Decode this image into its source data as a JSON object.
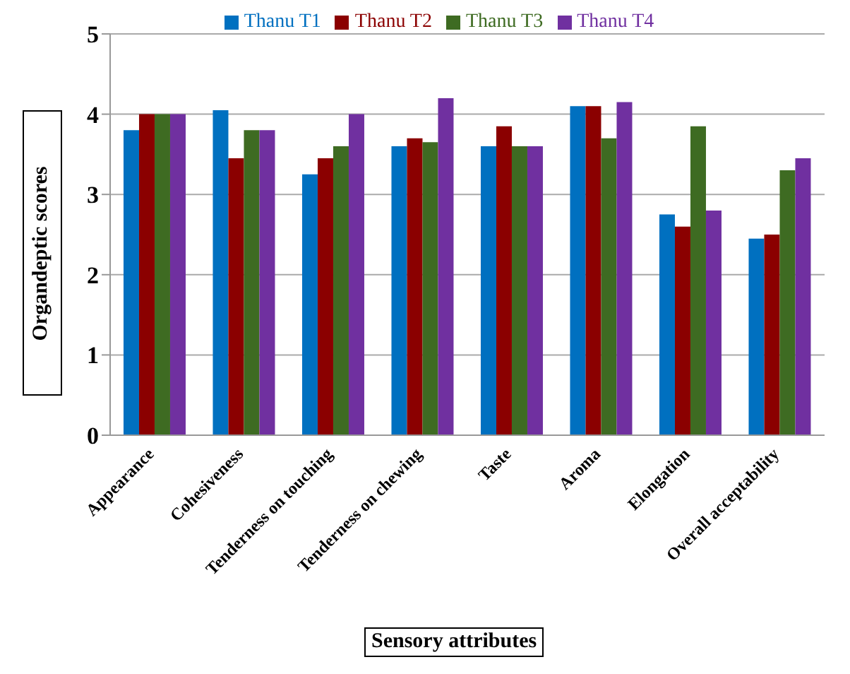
{
  "chart_data": {
    "type": "bar",
    "xlabel": "Sensory attributes",
    "ylabel": "Organdeptic scores",
    "categories": [
      "Appearance",
      "Cohesiveness",
      "Tenderness on touching",
      "Tenderness on chewing",
      "Taste",
      "Aroma",
      "Elongation",
      "Overall acceptability"
    ],
    "series": [
      {
        "name": "Thanu T1",
        "color": "#0070c0",
        "values": [
          3.8,
          4.05,
          3.25,
          3.6,
          3.6,
          4.1,
          2.75,
          2.45
        ]
      },
      {
        "name": "Thanu T2",
        "color": "#8b0000",
        "values": [
          4.0,
          3.45,
          3.45,
          3.7,
          3.85,
          4.1,
          2.6,
          2.5
        ]
      },
      {
        "name": "Thanu T3",
        "color": "#3e6b22",
        "values": [
          4.0,
          3.8,
          3.6,
          3.65,
          3.6,
          3.7,
          3.85,
          3.3
        ]
      },
      {
        "name": "Thanu T4",
        "color": "#7030a0",
        "values": [
          4.0,
          3.8,
          4.0,
          4.2,
          3.6,
          4.15,
          2.8,
          3.45
        ]
      }
    ],
    "ylim": [
      0,
      5
    ],
    "yticks": [
      0,
      1,
      2,
      3,
      4,
      5
    ],
    "grid": "y",
    "legend": "top"
  }
}
